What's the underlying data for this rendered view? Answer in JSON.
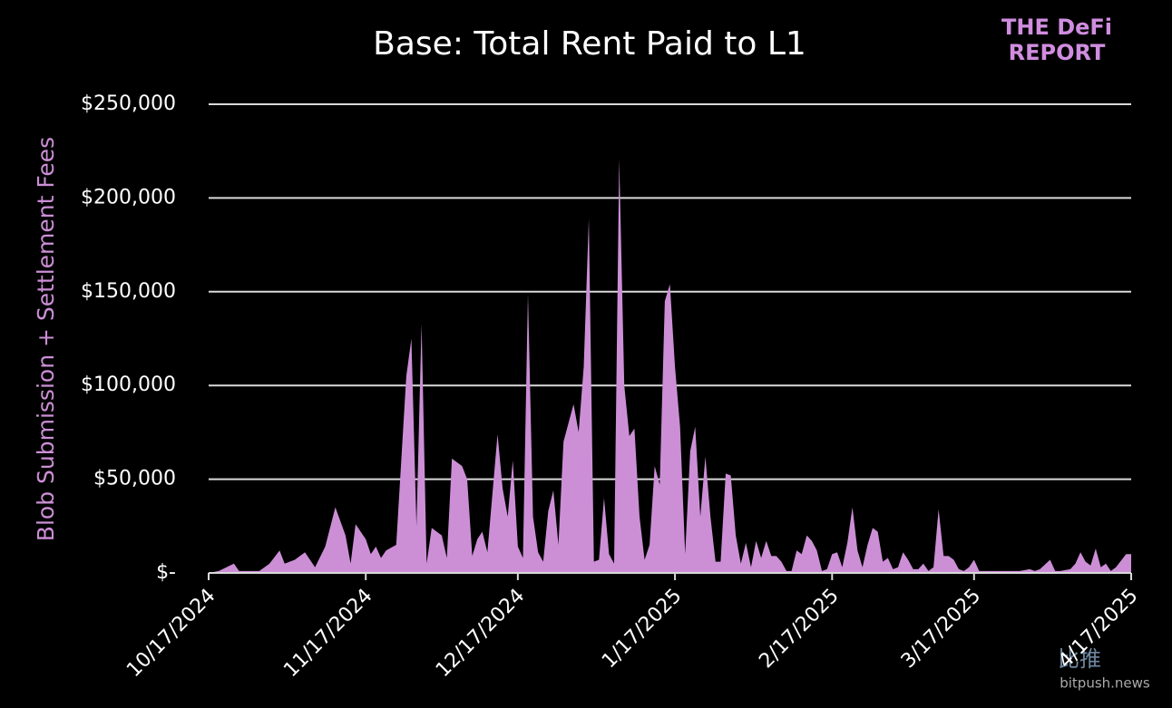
{
  "chart_data": {
    "type": "area",
    "title": "Base: Total Rent Paid to L1",
    "y_label": "Blob Submission + Settlement Fees",
    "logo": [
      "THE DeFi",
      "REPORT"
    ],
    "watermark": [
      "比推",
      "bitpush.news"
    ],
    "color": "#cc8fd6",
    "grid": true,
    "x": [
      "10/17/2024",
      "10/19/2024",
      "10/22/2024",
      "10/23/2024",
      "10/27/2024",
      "10/29/2024",
      "10/31/2024",
      "11/1/2024",
      "11/3/2024",
      "11/5/2024",
      "11/7/2024",
      "11/9/2024",
      "11/11/2024",
      "11/13/2024",
      "11/14/2024",
      "11/15/2024",
      "11/17/2024",
      "11/18/2024",
      "11/19/2024",
      "11/20/2024",
      "11/21/2024",
      "11/23/2024",
      "11/25/2024",
      "11/26/2024",
      "11/27/2024",
      "11/28/2024",
      "11/29/2024",
      "11/30/2024",
      "12/2/2024",
      "12/3/2024",
      "12/4/2024",
      "12/6/2024",
      "12/7/2024",
      "12/8/2024",
      "12/9/2024",
      "12/10/2024",
      "12/11/2024",
      "12/13/2024",
      "12/14/2024",
      "12/15/2024",
      "12/16/2024",
      "12/17/2024",
      "12/18/2024",
      "12/19/2024",
      "12/20/2024",
      "12/21/2024",
      "12/22/2024",
      "12/23/2024",
      "12/24/2024",
      "12/25/2024",
      "12/26/2024",
      "12/27/2024",
      "12/28/2024",
      "12/29/2024",
      "12/30/2024",
      "12/31/2024",
      "1/1/2025",
      "1/2/2025",
      "1/3/2025",
      "1/4/2025",
      "1/5/2025",
      "1/6/2025",
      "1/7/2025",
      "1/8/2025",
      "1/9/2025",
      "1/10/2025",
      "1/11/2025",
      "1/12/2025",
      "1/13/2025",
      "1/14/2025",
      "1/15/2025",
      "1/16/2025",
      "1/17/2025",
      "1/18/2025",
      "1/19/2025",
      "1/20/2025",
      "1/21/2025",
      "1/22/2025",
      "1/23/2025",
      "1/24/2025",
      "1/25/2025",
      "1/26/2025",
      "1/27/2025",
      "1/28/2025",
      "1/29/2025",
      "1/30/2025",
      "1/31/2025",
      "2/1/2025",
      "2/2/2025",
      "2/3/2025",
      "2/4/2025",
      "2/5/2025",
      "2/6/2025",
      "2/7/2025",
      "2/8/2025",
      "2/9/2025",
      "2/10/2025",
      "2/11/2025",
      "2/12/2025",
      "2/13/2025",
      "2/14/2025",
      "2/15/2025",
      "2/16/2025",
      "2/17/2025",
      "2/18/2025",
      "2/19/2025",
      "2/20/2025",
      "2/21/2025",
      "2/22/2025",
      "2/23/2025",
      "2/24/2025",
      "2/25/2025",
      "2/26/2025",
      "2/27/2025",
      "2/28/2025",
      "3/1/2025",
      "3/2/2025",
      "3/3/2025",
      "3/4/2025",
      "3/5/2025",
      "3/6/2025",
      "3/7/2025",
      "3/8/2025",
      "3/9/2025",
      "3/10/2025",
      "3/11/2025",
      "3/12/2025",
      "3/13/2025",
      "3/14/2025",
      "3/15/2025",
      "3/16/2025",
      "3/17/2025",
      "3/18/2025",
      "3/26/2025",
      "3/28/2025",
      "3/29/2025",
      "3/30/2025",
      "4/1/2025",
      "4/2/2025",
      "4/3/2025",
      "4/5/2025",
      "4/6/2025",
      "4/7/2025",
      "4/8/2025",
      "4/9/2025",
      "4/10/2025",
      "4/11/2025",
      "4/12/2025",
      "4/13/2025",
      "4/14/2025",
      "4/16/2025",
      "4/17/2025"
    ],
    "values": [
      0,
      1000,
      5000,
      1000,
      1000,
      5000,
      12000,
      5000,
      7000,
      11000,
      3000,
      14000,
      35000,
      20000,
      5000,
      26000,
      18000,
      10000,
      14000,
      8000,
      12000,
      15000,
      105000,
      125000,
      25000,
      133000,
      5000,
      24000,
      20000,
      8000,
      61000,
      57000,
      50000,
      9000,
      18000,
      22000,
      11000,
      74000,
      45000,
      30000,
      60000,
      14000,
      8000,
      149000,
      30000,
      11000,
      6000,
      33000,
      44000,
      15000,
      70000,
      80000,
      90000,
      75000,
      110000,
      189000,
      6000,
      7000,
      40000,
      10000,
      5000,
      221000,
      100000,
      73000,
      77000,
      30000,
      7000,
      15000,
      57000,
      47000,
      145000,
      154000,
      110000,
      78000,
      10000,
      65000,
      78000,
      30000,
      62000,
      30000,
      6000,
      6000,
      53000,
      52000,
      20000,
      5000,
      16000,
      3000,
      17000,
      8000,
      17000,
      9000,
      9000,
      6000,
      1000,
      1000,
      12000,
      10000,
      20000,
      17000,
      12000,
      1000,
      2000,
      10000,
      11000,
      3000,
      16000,
      35000,
      12000,
      3000,
      15000,
      24000,
      22000,
      6000,
      8000,
      2000,
      3000,
      11000,
      7000,
      2000,
      2000,
      5000,
      1000,
      3000,
      34000,
      9000,
      9000,
      7000,
      2000,
      1000,
      3000,
      7000,
      1000,
      1000,
      2000,
      1000,
      2000,
      7000,
      1000,
      1000,
      2000,
      5000,
      11000,
      6000,
      4000,
      13000,
      3000,
      5000,
      1000,
      3000,
      10000,
      10000
    ],
    "xlim": [
      "10/17/2024",
      "4/17/2025"
    ],
    "xticks": [
      "10/17/2024",
      "11/17/2024",
      "12/17/2024",
      "1/17/2025",
      "2/17/2025",
      "3/17/2025",
      "4/17/2025"
    ],
    "ylim": [
      0,
      250000
    ],
    "yticks": [
      {
        "value": 0,
        "label": "$-"
      },
      {
        "value": 50000,
        "label": "$50,000"
      },
      {
        "value": 100000,
        "label": "$100,000"
      },
      {
        "value": 150000,
        "label": "$150,000"
      },
      {
        "value": 200000,
        "label": "$200,000"
      },
      {
        "value": 250000,
        "label": "$250,000"
      }
    ]
  }
}
